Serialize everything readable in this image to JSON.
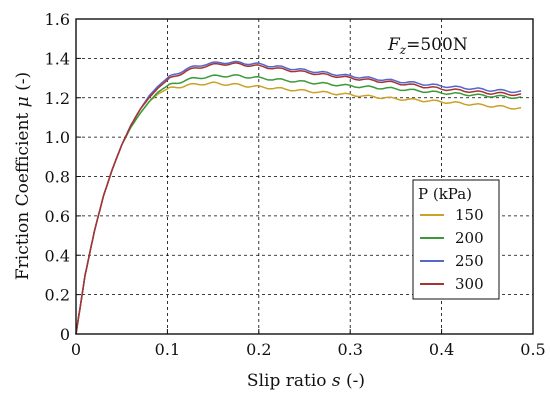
{
  "chart_data": {
    "type": "line",
    "xlabel_prefix": "Slip ratio ",
    "xlabel_var": "s",
    "xlabel_suffix": " (-)",
    "ylabel_prefix": "Friction Coefficient ",
    "ylabel_var": "μ",
    "ylabel_suffix": " (-)",
    "annotation_var": "F",
    "annotation_sub": "z",
    "annotation_value": "=500N",
    "xlim": [
      0,
      0.5
    ],
    "ylim": [
      0,
      1.6
    ],
    "xticks": [
      "0",
      "0.1",
      "0.2",
      "0.3",
      "0.4",
      "0.5"
    ],
    "yticks": [
      "0",
      "0.2",
      "0.4",
      "0.6",
      "0.8",
      "1.0",
      "1.2",
      "1.4",
      "1.6"
    ],
    "grid": true,
    "legend_title": "P (kPa)",
    "legend_position": "right",
    "series": [
      {
        "name": "150",
        "color": "#c9a227",
        "points": [
          [
            0,
            0
          ],
          [
            0.01,
            0.3
          ],
          [
            0.02,
            0.52
          ],
          [
            0.03,
            0.7
          ],
          [
            0.04,
            0.84
          ],
          [
            0.05,
            0.96
          ],
          [
            0.06,
            1.05
          ],
          [
            0.07,
            1.12
          ],
          [
            0.08,
            1.18
          ],
          [
            0.09,
            1.22
          ],
          [
            0.1,
            1.245
          ],
          [
            0.12,
            1.262
          ],
          [
            0.14,
            1.272
          ],
          [
            0.15,
            1.273
          ],
          [
            0.17,
            1.268
          ],
          [
            0.2,
            1.255
          ],
          [
            0.25,
            1.235
          ],
          [
            0.3,
            1.215
          ],
          [
            0.35,
            1.195
          ],
          [
            0.4,
            1.18
          ],
          [
            0.45,
            1.16
          ],
          [
            0.487,
            1.145
          ]
        ]
      },
      {
        "name": "200",
        "color": "#3a9a3a",
        "points": [
          [
            0,
            0
          ],
          [
            0.01,
            0.3
          ],
          [
            0.02,
            0.52
          ],
          [
            0.03,
            0.7
          ],
          [
            0.04,
            0.84
          ],
          [
            0.05,
            0.96
          ],
          [
            0.06,
            1.05
          ],
          [
            0.07,
            1.12
          ],
          [
            0.08,
            1.18
          ],
          [
            0.09,
            1.23
          ],
          [
            0.1,
            1.26
          ],
          [
            0.12,
            1.29
          ],
          [
            0.14,
            1.305
          ],
          [
            0.16,
            1.312
          ],
          [
            0.18,
            1.31
          ],
          [
            0.2,
            1.3
          ],
          [
            0.25,
            1.28
          ],
          [
            0.3,
            1.26
          ],
          [
            0.35,
            1.245
          ],
          [
            0.4,
            1.225
          ],
          [
            0.45,
            1.21
          ],
          [
            0.487,
            1.2
          ]
        ]
      },
      {
        "name": "250",
        "color": "#5566cc",
        "points": [
          [
            0,
            0
          ],
          [
            0.01,
            0.3
          ],
          [
            0.02,
            0.52
          ],
          [
            0.03,
            0.7
          ],
          [
            0.04,
            0.84
          ],
          [
            0.05,
            0.96
          ],
          [
            0.06,
            1.06
          ],
          [
            0.07,
            1.14
          ],
          [
            0.08,
            1.21
          ],
          [
            0.09,
            1.26
          ],
          [
            0.1,
            1.3
          ],
          [
            0.12,
            1.345
          ],
          [
            0.14,
            1.37
          ],
          [
            0.16,
            1.38
          ],
          [
            0.18,
            1.378
          ],
          [
            0.2,
            1.37
          ],
          [
            0.25,
            1.34
          ],
          [
            0.3,
            1.31
          ],
          [
            0.35,
            1.285
          ],
          [
            0.4,
            1.26
          ],
          [
            0.45,
            1.24
          ],
          [
            0.487,
            1.23
          ]
        ]
      },
      {
        "name": "300",
        "color": "#a83232",
        "points": [
          [
            0,
            0
          ],
          [
            0.01,
            0.3
          ],
          [
            0.02,
            0.52
          ],
          [
            0.03,
            0.7
          ],
          [
            0.04,
            0.84
          ],
          [
            0.05,
            0.96
          ],
          [
            0.06,
            1.06
          ],
          [
            0.07,
            1.14
          ],
          [
            0.08,
            1.2
          ],
          [
            0.09,
            1.25
          ],
          [
            0.1,
            1.29
          ],
          [
            0.12,
            1.335
          ],
          [
            0.14,
            1.36
          ],
          [
            0.16,
            1.372
          ],
          [
            0.18,
            1.37
          ],
          [
            0.2,
            1.36
          ],
          [
            0.25,
            1.33
          ],
          [
            0.3,
            1.3
          ],
          [
            0.35,
            1.275
          ],
          [
            0.4,
            1.245
          ],
          [
            0.45,
            1.225
          ],
          [
            0.487,
            1.215
          ]
        ]
      }
    ]
  }
}
